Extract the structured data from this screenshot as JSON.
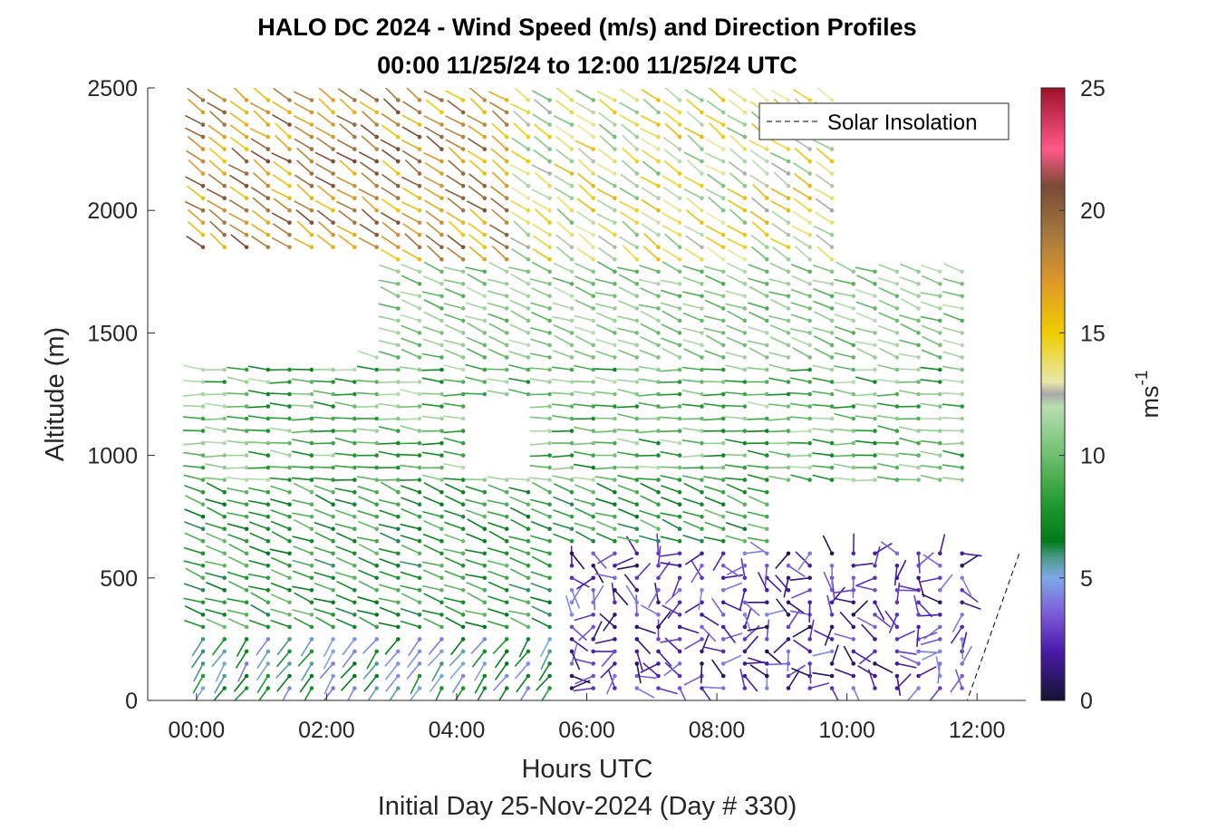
{
  "chart_data": {
    "type": "scatter",
    "title_line1": "HALO DC 2024 - Wind Speed (m/s) and Direction Profiles",
    "title_line2": "00:00 11/25/24 to 12:00 11/25/24  UTC",
    "xlabel": "Hours UTC",
    "xlabel2": "Initial Day 25-Nov-2024 (Day # 330)",
    "ylabel": "Altitude (m)",
    "xlim": [
      -0.75,
      12.75
    ],
    "ylim": [
      0,
      2500
    ],
    "x_ticks": [
      {
        "value": 0,
        "label": "00:00"
      },
      {
        "value": 2,
        "label": "02:00"
      },
      {
        "value": 4,
        "label": "04:00"
      },
      {
        "value": 6,
        "label": "06:00"
      },
      {
        "value": 8,
        "label": "08:00"
      },
      {
        "value": 10,
        "label": "10:00"
      },
      {
        "value": 12,
        "label": "12:00"
      }
    ],
    "y_ticks": [
      {
        "value": 0,
        "label": "0"
      },
      {
        "value": 500,
        "label": "500"
      },
      {
        "value": 1000,
        "label": "1000"
      },
      {
        "value": 1500,
        "label": "1500"
      },
      {
        "value": 2000,
        "label": "2000"
      },
      {
        "value": 2500,
        "label": "2500"
      }
    ],
    "colorbar": {
      "label": "ms",
      "label_exponent": "-1",
      "range": [
        0,
        25
      ],
      "ticks": [
        {
          "value": 0,
          "label": "0"
        },
        {
          "value": 5,
          "label": "5"
        },
        {
          "value": 10,
          "label": "10"
        },
        {
          "value": 15,
          "label": "15"
        },
        {
          "value": 20,
          "label": "20"
        },
        {
          "value": 25,
          "label": "25"
        }
      ],
      "stops": [
        {
          "v": 0,
          "c": "#141432"
        },
        {
          "v": 2,
          "c": "#4a1aa8"
        },
        {
          "v": 3.5,
          "c": "#7a5ad8"
        },
        {
          "v": 5,
          "c": "#7fa8e8"
        },
        {
          "v": 5.8,
          "c": "#4f9a8f"
        },
        {
          "v": 6.5,
          "c": "#007a1a"
        },
        {
          "v": 8,
          "c": "#1f9a2f"
        },
        {
          "v": 10,
          "c": "#6fbf6f"
        },
        {
          "v": 12,
          "c": "#b8deb0"
        },
        {
          "v": 12.5,
          "c": "#a8a8a8"
        },
        {
          "v": 13,
          "c": "#e8e8a8"
        },
        {
          "v": 15,
          "c": "#f0cc00"
        },
        {
          "v": 17,
          "c": "#e09a28"
        },
        {
          "v": 19,
          "c": "#a67840"
        },
        {
          "v": 21,
          "c": "#7a4a35"
        },
        {
          "v": 22.5,
          "c": "#ff5a8a"
        },
        {
          "v": 25,
          "c": "#a0102a"
        }
      ]
    },
    "legend": {
      "label": "Solar Insolation",
      "position": "top-right",
      "style": "dashed"
    },
    "solar_insolation": {
      "x": [
        -0.75,
        11.85,
        12.65
      ],
      "y": [
        0,
        0,
        600
      ]
    },
    "profile_times_hours": [
      0.1,
      0.43,
      0.77,
      1.1,
      1.43,
      1.77,
      2.1,
      2.43,
      2.77,
      3.1,
      3.43,
      3.77,
      4.1,
      4.43,
      4.77,
      5.1,
      5.43,
      5.77,
      6.1,
      6.43,
      6.77,
      7.1,
      7.43,
      7.77,
      8.1,
      8.43,
      8.77,
      9.1,
      9.43,
      9.77,
      10.1,
      10.43,
      10.77,
      11.1,
      11.43,
      11.77
    ],
    "profile_altitudes_m": [
      50,
      100,
      150,
      200,
      250,
      300,
      350,
      400,
      450,
      500,
      550,
      600,
      650,
      700,
      750,
      800,
      850,
      900,
      950,
      1000,
      1050,
      1100,
      1150,
      1200,
      1250,
      1300,
      1350,
      1400,
      1450,
      1500,
      1550,
      1600,
      1650,
      1700,
      1750,
      1800,
      1850,
      1900,
      1950,
      2000,
      2050,
      2100,
      2150,
      2200,
      2250,
      2300,
      2350,
      2400,
      2450
    ],
    "wind_regimes": [
      {
        "altitude_range_m": [
          0,
          300
        ],
        "hours_range": [
          0,
          5.5
        ],
        "speed_ms": [
          4,
          8
        ],
        "direction": "from southwest"
      },
      {
        "altitude_range_m": [
          0,
          650
        ],
        "hours_range": [
          5.5,
          12
        ],
        "speed_ms": [
          0.5,
          4.5
        ],
        "direction": "variable"
      },
      {
        "altitude_range_m": [
          300,
          900
        ],
        "hours_range": [
          0,
          9
        ],
        "speed_ms": [
          6,
          10
        ],
        "direction": "from west-northwest"
      },
      {
        "altitude_range_m": [
          900,
          1400
        ],
        "hours_range": [
          0,
          12
        ],
        "speed_ms": [
          7,
          12
        ],
        "direction": "from west"
      },
      {
        "altitude_range_m": [
          1400,
          1800
        ],
        "hours_range": [
          2.5,
          12
        ],
        "speed_ms": [
          9,
          12
        ],
        "direction": "from west-northwest"
      },
      {
        "altitude_range_m": [
          1800,
          2500
        ],
        "hours_range": [
          0,
          5
        ],
        "speed_ms": [
          15,
          21
        ],
        "direction": "from northwest"
      },
      {
        "altitude_range_m": [
          1800,
          2500
        ],
        "hours_range": [
          5,
          10
        ],
        "speed_ms": [
          10,
          16
        ],
        "direction": "from northwest"
      }
    ]
  }
}
